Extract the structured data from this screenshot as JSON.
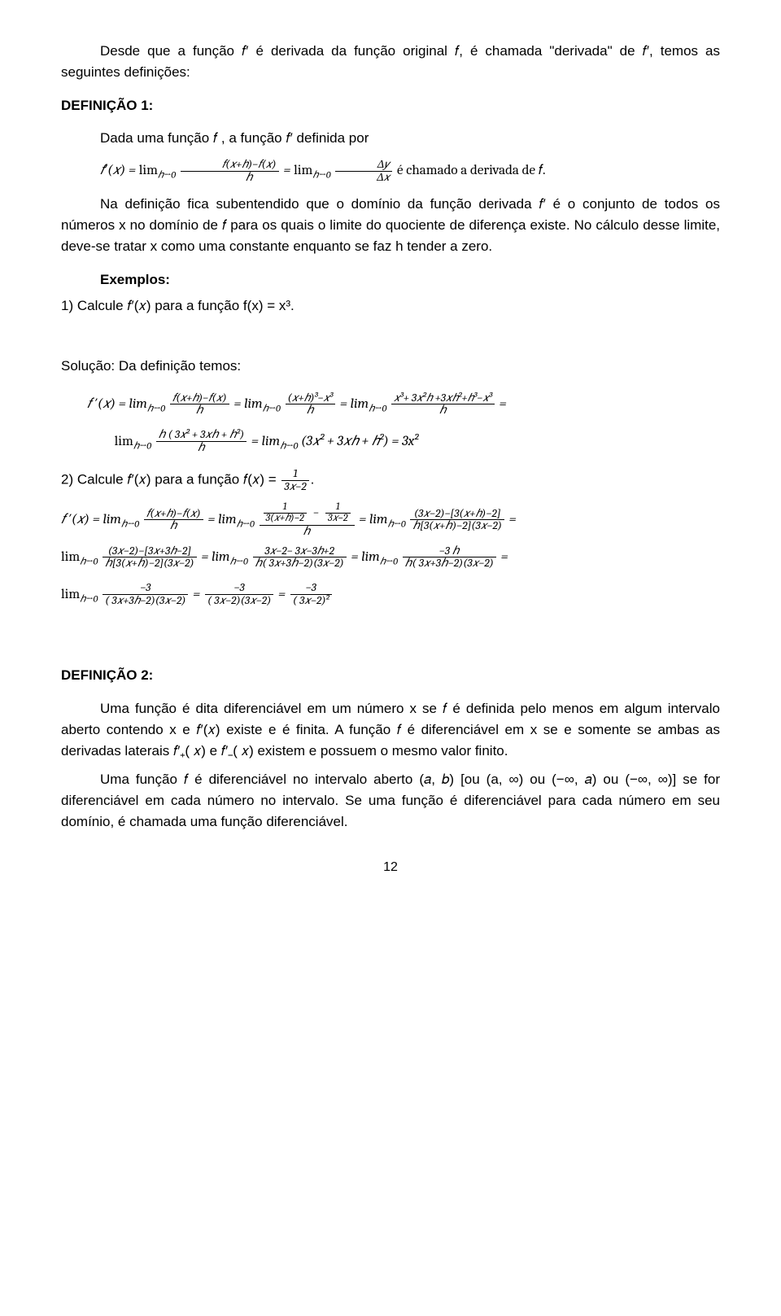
{
  "intro": "Desde que a função 𝑓′ é derivada da função original 𝑓, é chamada \"derivada\" de 𝑓′, temos as seguintes definições:",
  "def1_label": "DEFINIÇÃO 1:",
  "def1_lead": "Dada uma função 𝑓 , a função 𝑓′ definida por",
  "def1_post": "Na definição fica subentendido que o domínio da função derivada 𝑓′ é o conjunto de todos os números x no domínio de 𝑓 para os quais o limite do quociente de diferença existe. No cálculo desse limite, deve-se tratar x como uma constante enquanto se faz h tender a zero.",
  "ex_label": "Exemplos:",
  "ex1": "1) Calcule 𝑓′(𝑥) para a função f(x) = x³.",
  "sol_lead": "Solução: Da definição temos:",
  "ex2_intro": "2) Calcule 𝑓′(𝑥) para a função 𝑓(𝑥) = ",
  "def2_label": "DEFINIÇÃO 2:",
  "def2_p1": "Uma função é dita diferenciável em um número x se 𝑓 é definida pelo menos em algum intervalo aberto contendo x e  𝑓′(𝑥) existe e é finita. A função 𝑓 é diferenciável em x se e somente se ambas as derivadas laterais 𝑓′₊( 𝑥) e 𝑓′₋( 𝑥) existem e possuem o mesmo valor finito.",
  "def2_p2": "Uma função 𝑓 é diferenciável no intervalo aberto (𝑎, 𝑏) [ou (a, ∞) ou (−∞, 𝑎) ou (−∞, ∞)] se for diferenciável em cada número no intervalo. Se uma função é diferenciável para cada número em seu domínio, é chamada uma função diferenciável.",
  "page_number": "12",
  "colors": {
    "text": "#000000",
    "background": "#ffffff"
  },
  "math": {
    "def1_formula": {
      "lhs": "𝑓′(𝑥) = ",
      "lim": "lim",
      "sub": "ℎ→0",
      "frac1_num": "𝑓(𝑥+ℎ)−𝑓(𝑥)",
      "frac1_den": "ℎ",
      "mid": " = ",
      "frac2_num": "Δ𝑦",
      "frac2_den": "Δ𝑥",
      "tail": "  é chamado a derivada de 𝑓."
    },
    "sol1": {
      "line1_a": "𝑓 ′(𝑥) =  lim",
      "f1n": "𝑓(𝑥+ℎ)−𝑓(𝑥)",
      "f1d": "ℎ",
      "line1_b": " = lim",
      "f2n": "(𝑥+ℎ)³−𝑥³",
      "f2d": "ℎ",
      "line1_c": " = lim",
      "f3n": "𝑥³+ 3𝑥²ℎ +3𝑥ℎ²+ℎ³−𝑥³",
      "f3d": "ℎ",
      "line1_d": " =",
      "line2_a": "lim",
      "f4n": "ℎ ( 3𝑥² + 3𝑥ℎ + ℎ²)",
      "f4d": "ℎ",
      "line2_b": " = lim",
      "line2_c": "(3𝑥² + 3𝑥ℎ + ℎ²) = 3x²"
    },
    "ex2_frac": {
      "num": "1",
      "den": "3𝑥−2"
    },
    "sol2": {
      "a": "𝑓 ′(𝑥) = lim",
      "g1n": "𝑓(𝑥+ℎ)−𝑓(𝑥)",
      "g1d": "ℎ",
      "b": " = lim",
      "g2n_top_l": "1",
      "g2n_bot_l": "3(𝑥+ℎ)−2",
      "g2n_top_r": "1",
      "g2n_bot_r": "3𝑥−2",
      "g2d": "ℎ",
      "c": "  =  lim",
      "g3n": "(3𝑥−2)−[3(𝑥+ℎ)−2]",
      "g3d": "ℎ[3(𝑥+ℎ)−2](3𝑥−2)",
      "d": " =",
      "e": "lim",
      "g4n": "(3𝑥−2)−[3𝑥+3ℎ−2]",
      "g4d": "ℎ[3(𝑥+ℎ)−2](3𝑥−2)",
      "f": " =  lim",
      "g5n": "3𝑥−2− 3𝑥−3ℎ+2",
      "g5d": "ℎ( 3𝑥+3ℎ−2)(3𝑥−2)",
      "g": "  =  lim",
      "g6n": "−3 ℎ",
      "g6d": "ℎ( 3𝑥+3ℎ−2)(3𝑥−2)",
      "h": "  =",
      "i": "lim",
      "g7n": "−3",
      "g7d": "( 3𝑥+3ℎ−2)(3𝑥−2)",
      "j": " = ",
      "g8n": "−3",
      "g8d": "( 3𝑥−2)(3𝑥−2)",
      "k": " = ",
      "g9n": "−3",
      "g9d": "( 3𝑥−2)²"
    }
  }
}
